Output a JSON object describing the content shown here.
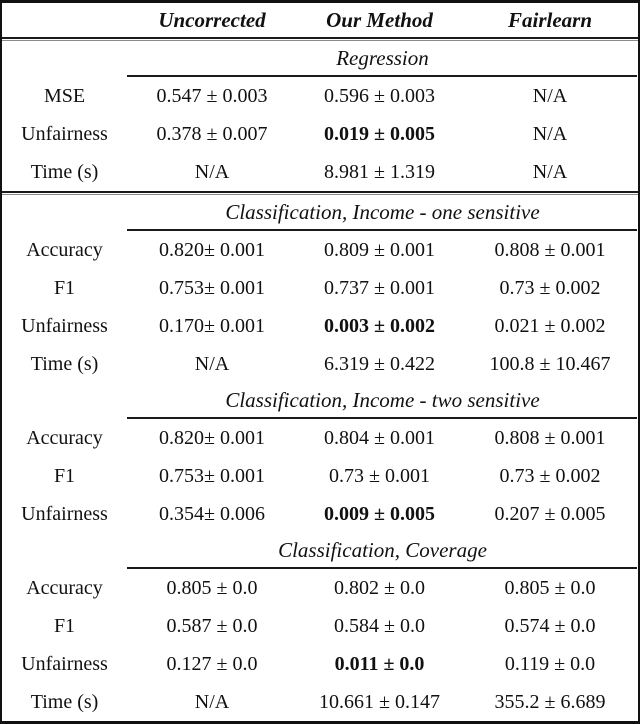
{
  "table": {
    "header": {
      "col1": "Uncorrected",
      "col2": "Our Method",
      "col3": "Fairlearn"
    },
    "colors": {
      "text": "#111111",
      "border": "#111111",
      "rule": "#1a1a1a"
    },
    "sections": [
      {
        "title": "Regression",
        "rows": [
          {
            "label": "MSE",
            "c1": "0.547 ± 0.003",
            "c2": "0.596 ± 0.003",
            "c3": "N/A"
          },
          {
            "label": "Unfairness",
            "c1": "0.378 ± 0.007",
            "c2": "0.019 ± 0.005",
            "c2_bold": true,
            "c3": "N/A"
          },
          {
            "label": "Time (s)",
            "c1": "N/A",
            "c2": "8.981 ± 1.319",
            "c3": "N/A"
          }
        ]
      },
      {
        "title": "Classification, Income - one sensitive",
        "rows": [
          {
            "label": "Accuracy",
            "c1": "0.820± 0.001",
            "c2": "0.809 ± 0.001",
            "c3": "0.808 ± 0.001"
          },
          {
            "label": "F1",
            "c1": "0.753± 0.001",
            "c2": "0.737 ± 0.001",
            "c3": "0.73 ± 0.002"
          },
          {
            "label": "Unfairness",
            "c1": "0.170± 0.001",
            "c2": "0.003 ± 0.002",
            "c2_bold": true,
            "c3": "0.021 ± 0.002"
          },
          {
            "label": "Time (s)",
            "c1": "N/A",
            "c2": "6.319 ± 0.422",
            "c3": "100.8 ± 10.467"
          }
        ]
      },
      {
        "title": "Classification, Income - two sensitive",
        "rows": [
          {
            "label": "Accuracy",
            "c1": "0.820± 0.001",
            "c2": "0.804 ± 0.001",
            "c3": "0.808 ± 0.001"
          },
          {
            "label": "F1",
            "c1": "0.753± 0.001",
            "c2": "0.73 ± 0.001",
            "c3": "0.73 ± 0.002"
          },
          {
            "label": "Unfairness",
            "c1": "0.354± 0.006",
            "c2": "0.009 ± 0.005",
            "c2_bold": true,
            "c3": "0.207 ± 0.005"
          }
        ]
      },
      {
        "title": "Classification, Coverage",
        "rows": [
          {
            "label": "Accuracy",
            "c1": "0.805 ± 0.0",
            "c2": "0.802 ± 0.0",
            "c3": "0.805 ± 0.0"
          },
          {
            "label": "F1",
            "c1": "0.587 ± 0.0",
            "c2": "0.584 ± 0.0",
            "c3": "0.574 ± 0.0"
          },
          {
            "label": "Unfairness",
            "c1": "0.127 ± 0.0",
            "c2": "0.011 ± 0.0",
            "c2_bold": true,
            "c3": "0.119 ± 0.0"
          },
          {
            "label": "Time (s)",
            "c1": "N/A",
            "c2": "10.661 ± 0.147",
            "c3": "355.2 ± 6.689"
          }
        ]
      }
    ]
  }
}
